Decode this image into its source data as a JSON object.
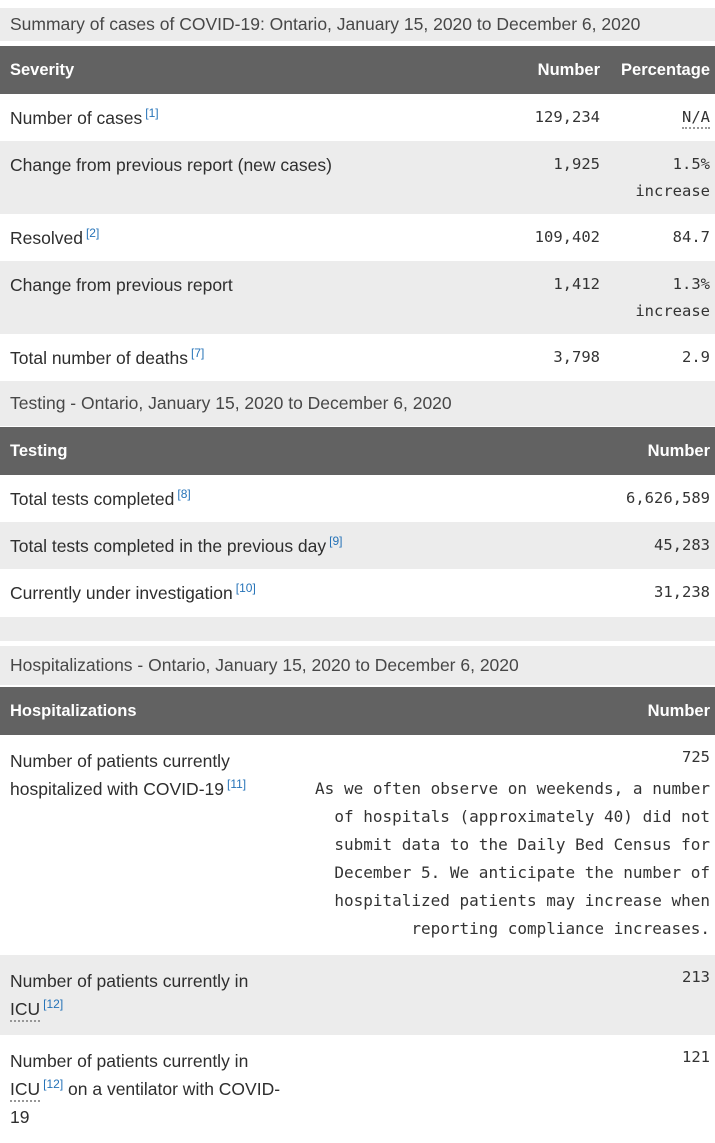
{
  "colors": {
    "table_header_bg": "#626262",
    "stripe_bg": "#ececec",
    "footnote_link": "#2673b8",
    "body_text": "#2e2e2e"
  },
  "summary": {
    "caption": "Summary of cases of COVID-19: Ontario, January 15, 2020 to December 6, 2020",
    "columns": [
      "Severity",
      "Number",
      "Percentage"
    ],
    "rows": [
      {
        "pre": "Number of cases",
        "footnote": "[1]",
        "number": "129,234",
        "pct": "N/A",
        "pct_qualifier": ""
      },
      {
        "pre": "Change from previous report (new cases)",
        "footnote": "",
        "number": "1,925",
        "pct": "1.5%",
        "pct_qualifier": "increase"
      },
      {
        "pre": "Resolved",
        "footnote": "[2]",
        "number": "109,402",
        "pct": "84.7",
        "pct_qualifier": ""
      },
      {
        "pre": "Change from previous report",
        "footnote": "",
        "number": "1,412",
        "pct": "1.3%",
        "pct_qualifier": "increase"
      },
      {
        "pre": "Total number of deaths",
        "footnote": "[7]",
        "number": "3,798",
        "pct": "2.9",
        "pct_qualifier": ""
      }
    ]
  },
  "testing": {
    "caption": "Testing - Ontario, January 15, 2020 to December 6, 2020",
    "columns": [
      "Testing",
      "Number"
    ],
    "rows": [
      {
        "pre": "Total tests completed",
        "footnote": "[8]",
        "number": "6,626,589"
      },
      {
        "pre": "Total tests completed in the previous day",
        "footnote": "[9]",
        "number": "45,283"
      },
      {
        "pre": "Currently under investigation",
        "footnote": "[10]",
        "number": "31,238"
      }
    ]
  },
  "hospitalizations": {
    "caption": "Hospitalizations - Ontario, January 15, 2020 to December 6, 2020",
    "columns": [
      "Hospitalizations",
      "Number"
    ],
    "rows": [
      {
        "pre": "Number of patients currently hospitalized with COVID-19",
        "abbr": "",
        "footnote": "[11]",
        "post": "",
        "number": "725",
        "note": "As we often observe on weekends, a number of hospitals (approximately 40) did not submit data to the Daily Bed Census for December 5. We anticipate the number of hospitalized patients may increase when reporting compliance increases."
      },
      {
        "pre": "Number of patients currently in ",
        "abbr": "ICU",
        "footnote": "[12]",
        "post": "",
        "number": "213",
        "note": ""
      },
      {
        "pre": "Number of patients currently in ",
        "abbr": "ICU",
        "footnote": "[12]",
        "post": " on a ventilator with COVID-19",
        "number": "121",
        "note": ""
      }
    ]
  }
}
